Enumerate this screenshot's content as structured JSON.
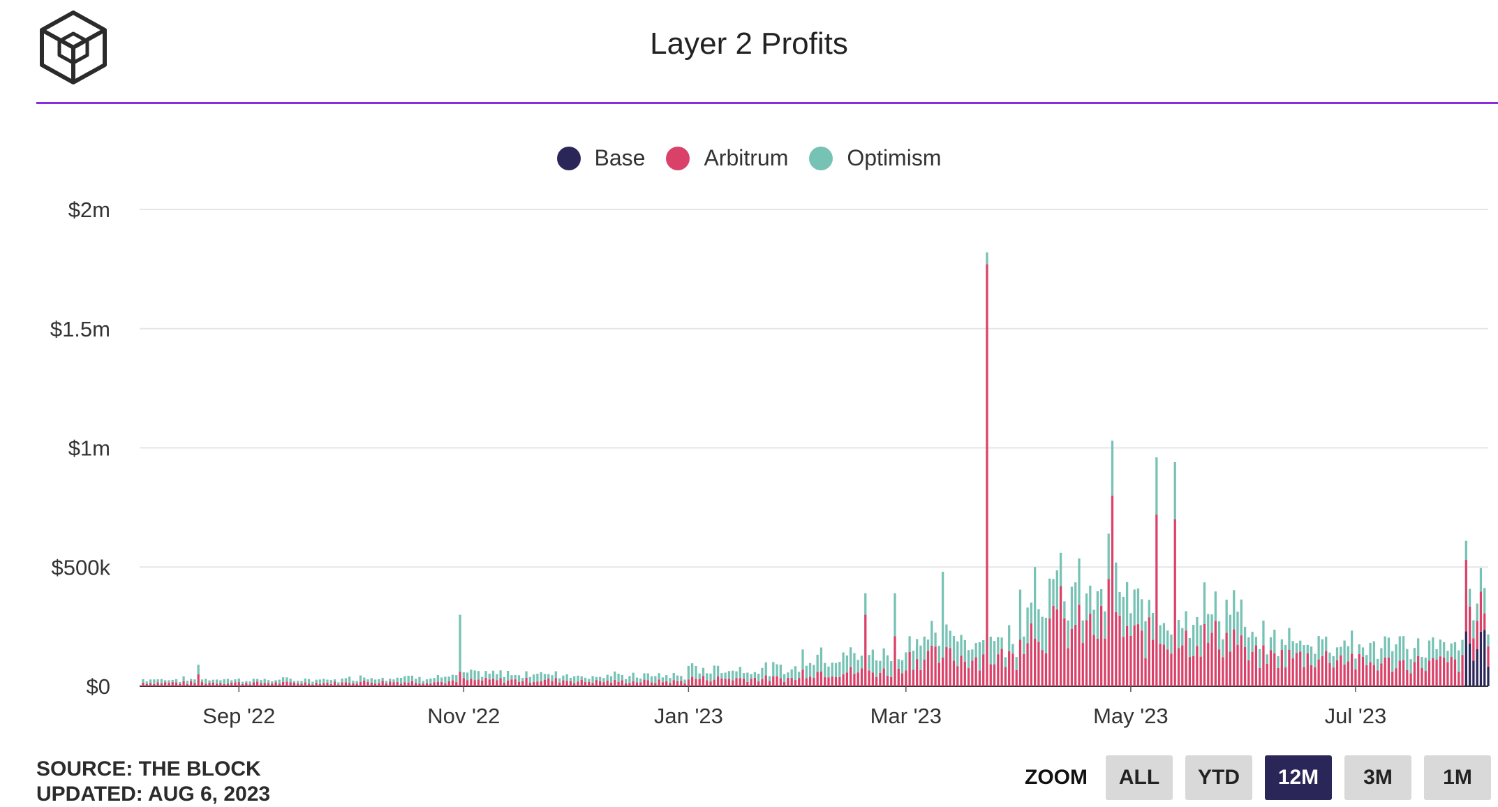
{
  "header": {
    "title": "Layer 2 Profits"
  },
  "colors": {
    "base": "#2a2658",
    "arbitrum": "#d94168",
    "optimism": "#76c2b4",
    "rule": "#8a2be2",
    "grid": "#e6e6e6"
  },
  "legend": {
    "items": [
      {
        "label": "Base",
        "color": "#2a2658"
      },
      {
        "label": "Arbitrum",
        "color": "#d94168"
      },
      {
        "label": "Optimism",
        "color": "#76c2b4"
      }
    ]
  },
  "footer": {
    "source": "SOURCE: THE BLOCK",
    "updated": "UPDATED: AUG 6, 2023"
  },
  "zoom": {
    "label": "ZOOM",
    "buttons": [
      "ALL",
      "YTD",
      "12M",
      "3M",
      "1M"
    ],
    "active": "12M"
  },
  "chart_data": {
    "type": "bar",
    "stacked": true,
    "title": "Layer 2 Profits",
    "x_range": [
      "2022-08-06",
      "2023-08-06"
    ],
    "ylim": [
      0,
      2000000
    ],
    "y_ticks": [
      {
        "value": 0,
        "label": "$0"
      },
      {
        "value": 500000,
        "label": "$500k"
      },
      {
        "value": 1000000,
        "label": "$1m"
      },
      {
        "value": 1500000,
        "label": "$1.5m"
      },
      {
        "value": 2000000,
        "label": "$2m"
      }
    ],
    "x_ticks": [
      {
        "date": "2022-09-01",
        "label": "Sep '22"
      },
      {
        "date": "2022-11-01",
        "label": "Nov '22"
      },
      {
        "date": "2023-01-01",
        "label": "Jan '23"
      },
      {
        "date": "2023-03-01",
        "label": "Mar '23"
      },
      {
        "date": "2023-05-01",
        "label": "May '23"
      },
      {
        "date": "2023-07-01",
        "label": "Jul '23"
      }
    ],
    "legend_position": "top-center",
    "grid": true,
    "series_names": [
      "Base",
      "Arbitrum",
      "Optimism"
    ],
    "monthly_profile": [
      {
        "period": "2022-08",
        "arbitrum": 15000,
        "optimism": 14000
      },
      {
        "period": "2022-09",
        "arbitrum": 14000,
        "optimism": 13000
      },
      {
        "period": "2022-10",
        "arbitrum": 18000,
        "optimism": 20000
      },
      {
        "period": "2022-11",
        "arbitrum": 25000,
        "optimism": 27000
      },
      {
        "period": "2022-12",
        "arbitrum": 20000,
        "optimism": 24000
      },
      {
        "period": "2023-01",
        "arbitrum": 32000,
        "optimism": 40000
      },
      {
        "period": "2023-02",
        "arbitrum": 60000,
        "optimism": 70000
      },
      {
        "period": "2023-03",
        "arbitrum": 120000,
        "optimism": 80000
      },
      {
        "period": "2023-04",
        "arbitrum": 240000,
        "optimism": 140000
      },
      {
        "period": "2023-05",
        "arbitrum": 200000,
        "optimism": 120000
      },
      {
        "period": "2023-06",
        "arbitrum": 120000,
        "optimism": 70000
      },
      {
        "period": "2023-07",
        "arbitrum": 95000,
        "optimism": 70000
      },
      {
        "period": "2023-08",
        "arbitrum": 120000,
        "optimism": 80000,
        "base": 200000
      }
    ],
    "highlights": [
      {
        "date": "2022-08-21",
        "arbitrum": 50000,
        "optimism": 40000
      },
      {
        "date": "2022-10-31",
        "arbitrum": 60000,
        "optimism": 240000
      },
      {
        "date": "2023-02-18",
        "arbitrum": 300000,
        "optimism": 90000
      },
      {
        "date": "2023-02-26",
        "arbitrum": 210000,
        "optimism": 180000
      },
      {
        "date": "2023-03-11",
        "arbitrum": 120000,
        "optimism": 360000
      },
      {
        "date": "2023-03-23",
        "arbitrum": 1770000,
        "optimism": 50000
      },
      {
        "date": "2023-04-05",
        "arbitrum": 200000,
        "optimism": 300000
      },
      {
        "date": "2023-04-12",
        "arbitrum": 420000,
        "optimism": 140000
      },
      {
        "date": "2023-04-25",
        "arbitrum": 450000,
        "optimism": 190000
      },
      {
        "date": "2023-04-26",
        "arbitrum": 800000,
        "optimism": 230000
      },
      {
        "date": "2023-05-08",
        "arbitrum": 720000,
        "optimism": 240000
      },
      {
        "date": "2023-05-13",
        "arbitrum": 700000,
        "optimism": 240000
      },
      {
        "date": "2023-07-31",
        "arbitrum": 300000,
        "optimism": 80000,
        "base": 230000
      }
    ]
  }
}
